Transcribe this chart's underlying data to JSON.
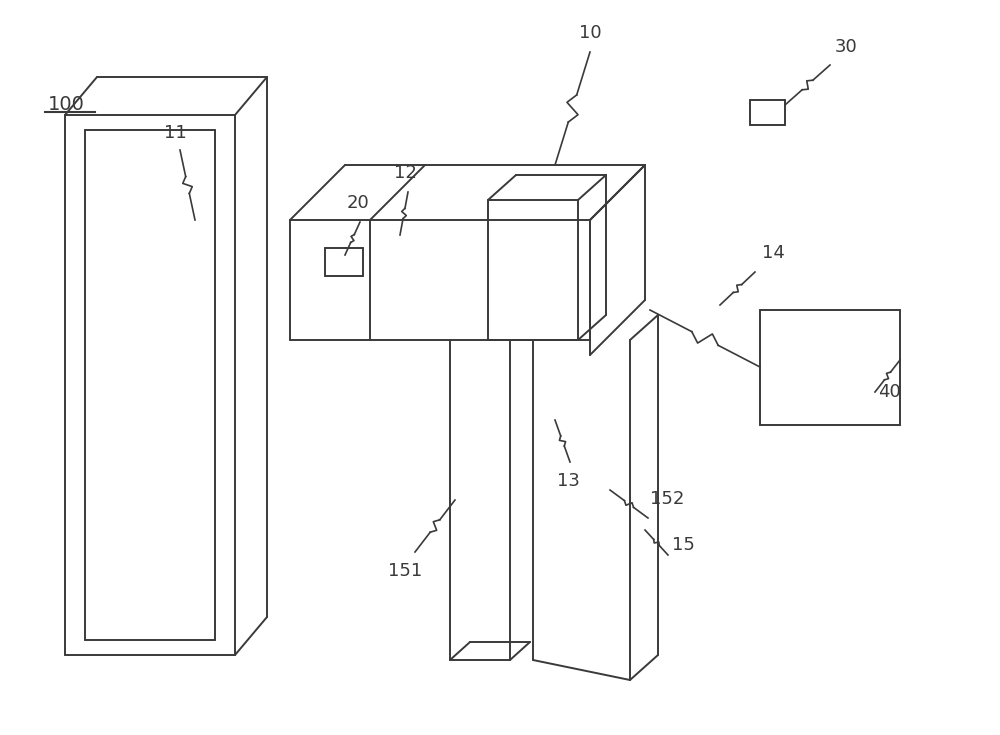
{
  "bg_color": "#ffffff",
  "line_color": "#3a3a3a",
  "line_width": 1.4,
  "fig_w": 10.0,
  "fig_h": 7.35,
  "dpi": 100
}
